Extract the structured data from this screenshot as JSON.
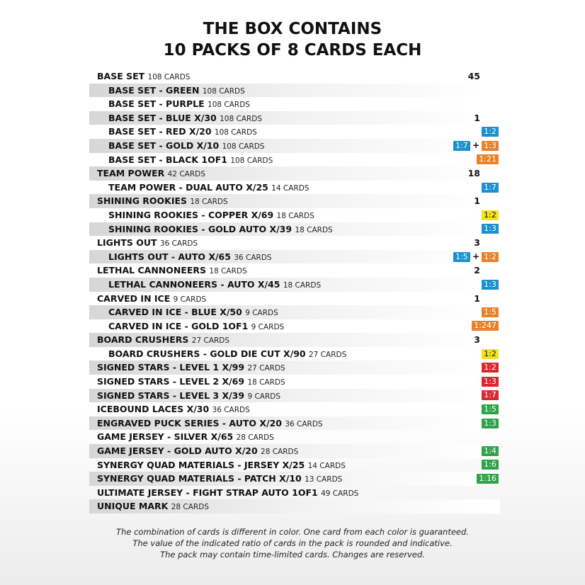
{
  "title": {
    "line1": "THE BOX CONTAINS",
    "line2": "10 PACKS OF 8 CARDS EACH"
  },
  "colors": {
    "blue": "#1c8fce",
    "orange": "#e8812b",
    "yellow": "#f4e31a",
    "red": "#d8282e",
    "green": "#2ea34a"
  },
  "rows": [
    {
      "name": "BASE SET",
      "count": "108 CARDS",
      "indent": false,
      "shade": false,
      "ratio": [
        {
          "text": "45"
        }
      ]
    },
    {
      "name": "BASE SET - GREEN",
      "count": "108 CARDS",
      "indent": true,
      "shade": true,
      "ratio": []
    },
    {
      "name": "BASE SET - PURPLE",
      "count": "108 CARDS",
      "indent": true,
      "shade": false,
      "ratio": []
    },
    {
      "name": "BASE SET - BLUE X/30",
      "count": "108 CARDS",
      "indent": true,
      "shade": true,
      "ratio": [
        {
          "text": "1"
        }
      ]
    },
    {
      "name": "BASE SET - RED X/20",
      "count": "108 CARDS",
      "indent": true,
      "shade": false,
      "ratio": [
        {
          "text": "1:2",
          "color": "blue"
        }
      ]
    },
    {
      "name": "BASE SET - GOLD X/10",
      "count": "108 CARDS",
      "indent": true,
      "shade": true,
      "ratio": [
        {
          "text": "1:7",
          "color": "blue"
        },
        {
          "sep": "+"
        },
        {
          "text": "1:3",
          "color": "orange"
        }
      ]
    },
    {
      "name": "BASE SET - BLACK 1OF1",
      "count": "108 CARDS",
      "indent": true,
      "shade": false,
      "ratio": [
        {
          "text": "1:21",
          "color": "orange"
        }
      ]
    },
    {
      "name": "TEAM POWER",
      "count": "42 CARDS",
      "indent": false,
      "shade": true,
      "ratio": [
        {
          "text": "18"
        }
      ]
    },
    {
      "name": "TEAM POWER - DUAL AUTO X/25",
      "count": "14 CARDS",
      "indent": true,
      "shade": false,
      "ratio": [
        {
          "text": "1:7",
          "color": "blue"
        }
      ]
    },
    {
      "name": "SHINING ROOKIES",
      "count": "18 CARDS",
      "indent": false,
      "shade": true,
      "ratio": [
        {
          "text": "1"
        }
      ]
    },
    {
      "name": "SHINING ROOKIES - COPPER X/69",
      "count": "18 CARDS",
      "indent": true,
      "shade": false,
      "ratio": [
        {
          "text": "1:2",
          "color": "yellow"
        }
      ]
    },
    {
      "name": "SHINING ROOKIES - GOLD AUTO X/39",
      "count": "18 CARDS",
      "indent": true,
      "shade": true,
      "ratio": [
        {
          "text": "1:3",
          "color": "blue"
        }
      ]
    },
    {
      "name": "LIGHTS OUT",
      "count": "36 CARDS",
      "indent": false,
      "shade": false,
      "ratio": [
        {
          "text": "3"
        }
      ]
    },
    {
      "name": "LIGHTS OUT - AUTO X/65",
      "count": "36 CARDS",
      "indent": true,
      "shade": true,
      "ratio": [
        {
          "text": "1:5",
          "color": "blue"
        },
        {
          "sep": "+"
        },
        {
          "text": "1:2",
          "color": "orange"
        }
      ]
    },
    {
      "name": "LETHAL CANNONEERS",
      "count": "18 CARDS",
      "indent": false,
      "shade": false,
      "ratio": [
        {
          "text": "2"
        }
      ]
    },
    {
      "name": "LETHAL CANNONEERS - AUTO X/45",
      "count": "18 CARDS",
      "indent": true,
      "shade": true,
      "ratio": [
        {
          "text": "1:3",
          "color": "blue"
        }
      ]
    },
    {
      "name": "CARVED IN ICE",
      "count": "9 CARDS",
      "indent": false,
      "shade": false,
      "ratio": [
        {
          "text": "1"
        }
      ]
    },
    {
      "name": "CARVED IN ICE - BLUE X/50",
      "count": "9 CARDS",
      "indent": true,
      "shade": true,
      "ratio": [
        {
          "text": "1:5",
          "color": "orange"
        }
      ]
    },
    {
      "name": "CARVED IN ICE - GOLD 1OF1",
      "count": "9 CARDS",
      "indent": true,
      "shade": false,
      "ratio": [
        {
          "text": "1:247",
          "color": "orange"
        }
      ]
    },
    {
      "name": "BOARD CRUSHERS",
      "count": "27 CARDS",
      "indent": false,
      "shade": true,
      "ratio": [
        {
          "text": "3"
        }
      ]
    },
    {
      "name": "BOARD CRUSHERS - GOLD DIE CUT X/90",
      "count": "27 CARDS",
      "indent": true,
      "shade": false,
      "ratio": [
        {
          "text": "1:2",
          "color": "yellow"
        }
      ]
    },
    {
      "name": "SIGNED STARS - LEVEL 1 X/99",
      "count": "27 CARDS",
      "indent": false,
      "shade": true,
      "ratio": [
        {
          "text": "1:2",
          "color": "red"
        }
      ]
    },
    {
      "name": "SIGNED STARS - LEVEL 2 X/69",
      "count": "18 CARDS",
      "indent": false,
      "shade": false,
      "ratio": [
        {
          "text": "1:3",
          "color": "red"
        }
      ]
    },
    {
      "name": "SIGNED STARS - LEVEL 3 X/39",
      "count": "9 CARDS",
      "indent": false,
      "shade": true,
      "ratio": [
        {
          "text": "1:7",
          "color": "red"
        }
      ]
    },
    {
      "name": "ICEBOUND LACES X/30",
      "count": "36 CARDS",
      "indent": false,
      "shade": false,
      "ratio": [
        {
          "text": "1:5",
          "color": "green"
        }
      ]
    },
    {
      "name": "ENGRAVED PUCK SERIES - AUTO X/20",
      "count": "36 CARDS",
      "indent": false,
      "shade": true,
      "ratio": [
        {
          "text": "1:3",
          "color": "green"
        }
      ]
    },
    {
      "name": "GAME JERSEY - SILVER X/65",
      "count": "28 CARDS",
      "indent": false,
      "shade": false,
      "ratio": []
    },
    {
      "name": "GAME JERSEY - GOLD AUTO X/20",
      "count": "28 CARDS",
      "indent": false,
      "shade": true,
      "ratio": [
        {
          "text": "1:4",
          "color": "green"
        }
      ]
    },
    {
      "name": "SYNERGY QUAD MATERIALS - JERSEY X/25",
      "count": "14 CARDS",
      "indent": false,
      "shade": false,
      "ratio": [
        {
          "text": "1:6",
          "color": "green"
        }
      ]
    },
    {
      "name": "SYNERGY QUAD MATERIALS - PATCH X/10",
      "count": "13 CARDS",
      "indent": false,
      "shade": true,
      "ratio": [
        {
          "text": "1:16",
          "color": "green"
        }
      ]
    },
    {
      "name": "ULTIMATE JERSEY - FIGHT STRAP AUTO 1OF1",
      "count": "49 CARDS",
      "indent": false,
      "shade": false,
      "ratio": []
    },
    {
      "name": "UNIQUE MARK",
      "count": "28 CARDS",
      "indent": false,
      "shade": true,
      "ratio": []
    }
  ],
  "footer": [
    "The combination of cards is different in color. One card from each color is guaranteed.",
    "The value of the indicated ratio of cards in the pack is rounded and indicative.",
    "The pack may contain time-limited cards. Changes are reserved."
  ]
}
